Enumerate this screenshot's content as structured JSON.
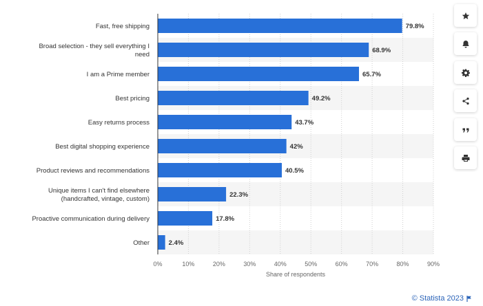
{
  "chart_data": {
    "type": "bar",
    "orientation": "horizontal",
    "categories": [
      [
        "Fast, free shipping"
      ],
      [
        "Broad selection - they sell everything I",
        "need"
      ],
      [
        "I am a Prime member"
      ],
      [
        "Best pricing"
      ],
      [
        "Easy returns process"
      ],
      [
        "Best digital shopping experience"
      ],
      [
        "Product reviews and recommendations"
      ],
      [
        "Unique items I can't find elsewhere",
        "(handcrafted, vintage, custom)"
      ],
      [
        "Proactive communication during delivery"
      ],
      [
        "Other"
      ]
    ],
    "values": [
      79.8,
      68.9,
      65.7,
      49.2,
      43.7,
      42,
      40.5,
      22.3,
      17.8,
      2.4
    ],
    "value_labels": [
      "79.8%",
      "68.9%",
      "65.7%",
      "49.2%",
      "43.7%",
      "42%",
      "40.5%",
      "22.3%",
      "17.8%",
      "2.4%"
    ],
    "xlim": [
      0,
      90
    ],
    "x_ticks": [
      0,
      10,
      20,
      30,
      40,
      50,
      60,
      70,
      80,
      90
    ],
    "x_tick_labels": [
      "0%",
      "10%",
      "20%",
      "30%",
      "40%",
      "50%",
      "60%",
      "70%",
      "80%",
      "90%"
    ],
    "xlabel": "Share of respondents",
    "ylabel": "",
    "title": "",
    "grid": true,
    "bar_color": "#2870d8",
    "band_color": "#f5f5f5"
  },
  "toolbar": {
    "items": [
      {
        "icon": "star-icon"
      },
      {
        "icon": "bell-icon"
      },
      {
        "icon": "gear-icon"
      },
      {
        "icon": "share-icon"
      },
      {
        "icon": "quote-icon"
      },
      {
        "icon": "print-icon"
      }
    ]
  },
  "footer": {
    "credit": "© Statista 2023",
    "flag_icon": "flag-icon"
  }
}
